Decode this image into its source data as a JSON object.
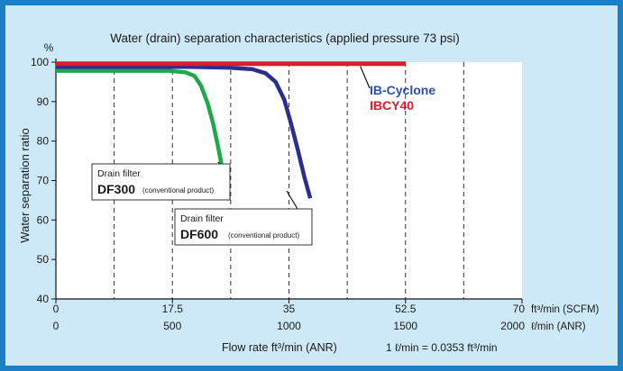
{
  "chart_data": {
    "type": "line",
    "title": "Water (drain) separation characteristics (applied pressure 73 psi)",
    "ylabel": "Water separation ratio",
    "yunit": "%",
    "ylim": [
      40,
      100
    ],
    "yticks": [
      40,
      50,
      60,
      70,
      80,
      90,
      100
    ],
    "xlim": [
      0,
      70
    ],
    "x_axis_label_primary": "Flow rate ft³/min (ANR)",
    "x_ticks_scfm": [
      "0",
      "17.5",
      "35",
      "52.5",
      "70"
    ],
    "x_unit_scfm": "ft³/min (SCFM)",
    "x_ticks_lmin": [
      "0",
      "500",
      "1000",
      "1500",
      "2000"
    ],
    "x_unit_lmin": "ℓ/min (ANR)",
    "conversion_note": "1 ℓ/min = 0.0353 ft³/min",
    "grid": {
      "vertical_dashed": true
    },
    "series": [
      {
        "name": "IBCY40",
        "color": "#e0192b",
        "points": [
          [
            0,
            99.6
          ],
          [
            52.5,
            99.6
          ]
        ]
      },
      {
        "name": "IB-Cyclone",
        "color": "#2a2f8f",
        "points": [
          [
            0,
            98.8
          ],
          [
            20,
            98.8
          ],
          [
            26,
            98.6
          ],
          [
            29.5,
            98.2
          ],
          [
            31.5,
            97.2
          ],
          [
            33,
            95.0
          ],
          [
            34.3,
            90.5
          ],
          [
            35.3,
            84.5
          ],
          [
            36.3,
            78.0
          ],
          [
            37.3,
            71.0
          ],
          [
            38.2,
            65.5
          ]
        ]
      },
      {
        "name": "DF600",
        "color": "#1fa84a",
        "points": [
          [
            0,
            97.8
          ],
          [
            17,
            97.8
          ],
          [
            19.5,
            97.4
          ],
          [
            20.8,
            96.5
          ],
          [
            21.8,
            94.0
          ],
          [
            22.8,
            89.5
          ],
          [
            23.6,
            84.5
          ],
          [
            24.3,
            79.0
          ],
          [
            25.0,
            73.0
          ],
          [
            25.6,
            68.0
          ],
          [
            26.0,
            65.0
          ]
        ]
      }
    ],
    "legend": [
      {
        "label": "IB-Cyclone",
        "color": "#2a4fb0"
      },
      {
        "label": "IBCY40",
        "color": "#e0192b"
      }
    ],
    "annotations": [
      {
        "line1": "Drain filter",
        "line2_bold": "DF300",
        "line2_small": "(conventional product)"
      },
      {
        "line1": "Drain filter",
        "line2_bold": "DF600",
        "line2_small": "(conventional product)"
      }
    ]
  }
}
